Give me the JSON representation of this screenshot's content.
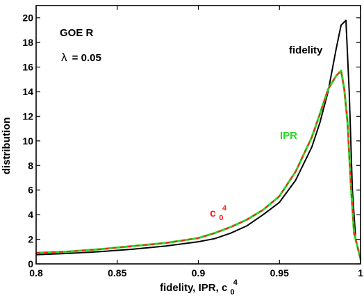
{
  "chart_data": {
    "type": "line",
    "xlabel": {
      "text": "fidelity, IPR, c",
      "sub": "0",
      "sup": "4"
    },
    "ylabel": "distribution",
    "xlim": [
      0.8,
      1.0
    ],
    "ylim": [
      0,
      21
    ],
    "xticks": [
      0.8,
      0.85,
      0.9,
      0.95,
      1.0
    ],
    "xtick_labels": [
      "0.8",
      "0.85",
      "0.9",
      "0.95",
      "1"
    ],
    "yticks": [
      0,
      2,
      4,
      6,
      8,
      10,
      12,
      14,
      16,
      18,
      20
    ],
    "ytick_labels": [
      "0",
      "2",
      "4",
      "6",
      "8",
      "10",
      "12",
      "14",
      "16",
      "18",
      "20"
    ],
    "grid": false,
    "annotations": {
      "model": "GOE R",
      "lambda_symbol": "λ",
      "lambda_value": "= 0.05",
      "fidelity": "fidelity",
      "ipr": "IPR",
      "c_base": "c",
      "c_sub": "0",
      "c_sup": "4"
    },
    "series": [
      {
        "name": "fidelity",
        "color": "#000000",
        "x": [
          0.8,
          0.82,
          0.84,
          0.86,
          0.88,
          0.9,
          0.91,
          0.92,
          0.93,
          0.94,
          0.95,
          0.96,
          0.97,
          0.975,
          0.98,
          0.985,
          0.988,
          0.991,
          0.993,
          0.995,
          0.997,
          1.0
        ],
        "y": [
          0.75,
          0.85,
          1.0,
          1.2,
          1.45,
          1.8,
          2.05,
          2.5,
          3.1,
          4.0,
          5.0,
          6.8,
          9.5,
          11.5,
          14.0,
          17.5,
          19.4,
          19.8,
          14.0,
          6.0,
          2.0,
          0.3
        ]
      },
      {
        "name": "IPR",
        "color": "#22dd22",
        "x": [
          0.8,
          0.82,
          0.84,
          0.86,
          0.88,
          0.9,
          0.91,
          0.92,
          0.93,
          0.94,
          0.95,
          0.96,
          0.97,
          0.975,
          0.98,
          0.985,
          0.988,
          0.99,
          0.992,
          0.994,
          0.996,
          1.0
        ],
        "y": [
          0.9,
          1.0,
          1.2,
          1.45,
          1.7,
          2.1,
          2.5,
          3.0,
          3.6,
          4.4,
          5.5,
          7.5,
          10.3,
          12.2,
          14.2,
          15.3,
          15.7,
          14.2,
          11.5,
          6.5,
          2.5,
          0.4
        ]
      },
      {
        "name": "c0^4",
        "color": "#ff2222",
        "x": [
          0.8,
          0.82,
          0.84,
          0.86,
          0.88,
          0.9,
          0.91,
          0.92,
          0.93,
          0.94,
          0.95,
          0.96,
          0.97,
          0.975,
          0.98,
          0.985,
          0.988,
          0.99,
          0.992,
          0.994,
          0.996,
          1.0
        ],
        "y": [
          0.9,
          1.0,
          1.2,
          1.45,
          1.7,
          2.1,
          2.5,
          3.0,
          3.6,
          4.4,
          5.5,
          7.5,
          10.3,
          12.2,
          14.2,
          15.3,
          15.7,
          14.2,
          11.5,
          6.5,
          2.5,
          0.4
        ]
      }
    ]
  }
}
